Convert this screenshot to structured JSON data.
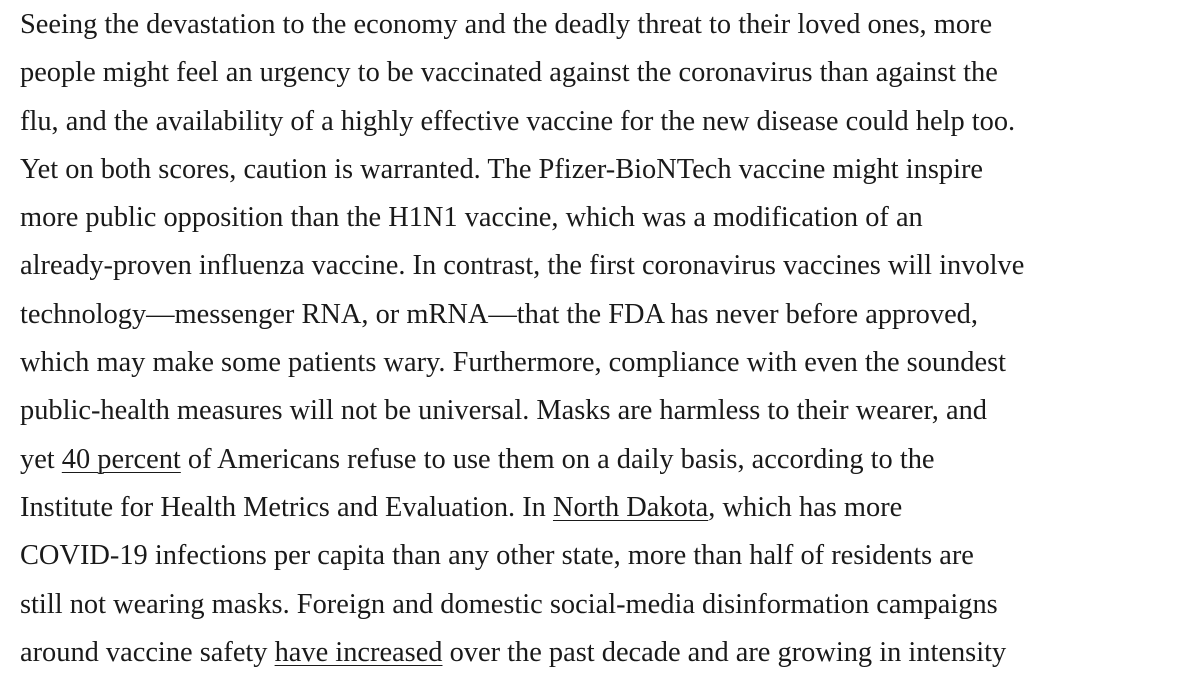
{
  "article": {
    "lines": [
      [
        {
          "t": "Seeing the devastation to the economy and the deadly threat to their loved ones, more"
        }
      ],
      [
        {
          "t": "people might feel an urgency to be vaccinated against the coronavirus than against the"
        }
      ],
      [
        {
          "t": "flu, and the availability of a highly effective vaccine for the new disease could help too."
        }
      ],
      [
        {
          "t": "Yet on both scores, caution is warranted. The Pfizer-BioNTech vaccine might inspire"
        }
      ],
      [
        {
          "t": "more public opposition than the H1N1 vaccine, which was a modification of an"
        }
      ],
      [
        {
          "t": "already-proven influenza vaccine. In contrast, the first coronavirus vaccines will involve"
        }
      ],
      [
        {
          "t": "technology—messenger RNA, or mRNA—that the FDA has never before approved,"
        }
      ],
      [
        {
          "t": "which may make some patients wary. Furthermore, compliance with even the soundest"
        }
      ],
      [
        {
          "t": "public-health measures will not be universal. Masks are harmless to their wearer, and"
        }
      ],
      [
        {
          "t": "yet "
        },
        {
          "t": "40 percent",
          "link": true
        },
        {
          "t": " of Americans refuse to use them on a daily basis, according to the"
        }
      ],
      [
        {
          "t": "Institute for Health Metrics and Evaluation. In "
        },
        {
          "t": "North Dakota",
          "link": true
        },
        {
          "t": ", which has more"
        }
      ],
      [
        {
          "t": "COVID-19 infections per capita than any other state, more than half of residents are"
        }
      ],
      [
        {
          "t": "still not wearing masks. Foreign and domestic social-media disinformation campaigns"
        }
      ],
      [
        {
          "t": "around vaccine safety "
        },
        {
          "t": "have increased",
          "link": true
        },
        {
          "t": " over the past decade and are growing in intensity"
        }
      ]
    ]
  }
}
